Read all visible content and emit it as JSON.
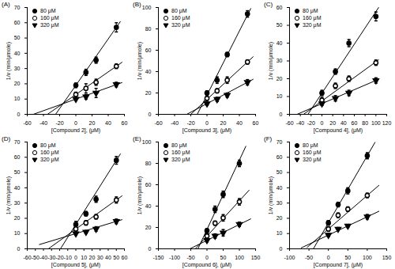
{
  "chart_data": [
    {
      "type": "scatter",
      "title": "(A)",
      "x_label": "[Compound 2], (μM)",
      "y_label": "1/v (min/μmole)",
      "x": [
        0,
        12.5,
        25,
        50
      ],
      "xlim": [
        -60,
        60
      ],
      "xticks": [
        -60,
        -40,
        -20,
        0,
        20,
        40,
        60
      ],
      "ylim": [
        0,
        70
      ],
      "yticks": [
        0,
        10,
        20,
        30,
        40,
        50,
        60,
        70
      ],
      "legend": "upper left",
      "series": [
        {
          "name": "80 μM",
          "color": "#000000",
          "marker": "circle",
          "values": [
            19,
            27.5,
            35.5,
            57
          ],
          "errors": [
            1.5,
            2,
            2,
            3
          ],
          "fit": {
            "x": [
              -25,
              55
            ],
            "y": [
              0,
              60.8
            ]
          }
        },
        {
          "name": "160 μM",
          "color": "#000000",
          "marker": "circle-open",
          "values": [
            13,
            17,
            21,
            31.5
          ],
          "errors": [
            1.5,
            3,
            2,
            1.5
          ],
          "fit": {
            "x": [
              -35,
              57
            ],
            "y": [
              0,
              34.1
            ]
          }
        },
        {
          "name": "320 μM",
          "color": "#000000",
          "marker": "triangle-down",
          "values": [
            10,
            11.5,
            14,
            19.5
          ],
          "errors": [
            1,
            1.5,
            3,
            1.5
          ],
          "fit": {
            "x": [
              -52,
              57
            ],
            "y": [
              0.1,
              20.8
            ]
          }
        }
      ]
    },
    {
      "type": "scatter",
      "title": "(B)",
      "x_label": "[Compound 3], (μM)",
      "y_label": "1/v (min/μmole)",
      "x": [
        0,
        12.5,
        25,
        50
      ],
      "xlim": [
        -60,
        60
      ],
      "xticks": [
        -60,
        -40,
        -20,
        0,
        20,
        40,
        60
      ],
      "ylim": [
        0,
        100
      ],
      "yticks": [
        0,
        20,
        40,
        60,
        80,
        100
      ],
      "legend": "upper left",
      "series": [
        {
          "name": "80 μM",
          "color": "#000000",
          "marker": "circle",
          "values": [
            20,
            32,
            56,
            94
          ],
          "errors": [
            2,
            3,
            2,
            3
          ],
          "fit": {
            "x": [
              -12,
              54
            ],
            "y": [
              0,
              99
            ]
          }
        },
        {
          "name": "160 μM",
          "color": "#000000",
          "marker": "circle-open",
          "values": [
            15,
            22,
            32,
            49
          ],
          "errors": [
            2,
            2,
            3,
            2
          ],
          "fit": {
            "x": [
              -20,
              57
            ],
            "y": [
              0,
              53.9
            ]
          }
        },
        {
          "name": "320 μM",
          "color": "#000000",
          "marker": "triangle-down",
          "values": [
            10,
            14,
            18,
            30
          ],
          "errors": [
            1.5,
            2,
            2,
            2.5
          ],
          "fit": {
            "x": [
              -25,
              57
            ],
            "y": [
              0,
              32.8
            ]
          }
        }
      ]
    },
    {
      "type": "scatter",
      "title": "(C)",
      "x_label": "[Compound 4], (μM)",
      "y_label": "1/v (min/μmole)",
      "x": [
        0,
        25,
        50,
        100
      ],
      "xlim": [
        -60,
        120
      ],
      "xticks": [
        -60,
        -40,
        -20,
        0,
        20,
        40,
        60,
        80,
        100,
        120
      ],
      "ylim": [
        0,
        60
      ],
      "yticks": [
        0,
        10,
        20,
        30,
        40,
        50,
        60
      ],
      "legend": "upper left",
      "series": [
        {
          "name": "80 μM",
          "color": "#000000",
          "marker": "circle",
          "values": [
            12,
            24,
            40,
            55
          ],
          "errors": [
            1.5,
            1.5,
            2,
            2.5
          ],
          "fit": {
            "x": [
              -26,
              105
            ],
            "y": [
              0,
              60
            ]
          }
        },
        {
          "name": "160 μM",
          "color": "#000000",
          "marker": "circle-open",
          "values": [
            8,
            16,
            20,
            29
          ],
          "errors": [
            1.5,
            1.5,
            1.5,
            1.5
          ],
          "fit": {
            "x": [
              -34,
              105
            ],
            "y": [
              0,
              30.6
            ]
          }
        },
        {
          "name": "320 μM",
          "color": "#000000",
          "marker": "triangle-down",
          "values": [
            6,
            9,
            12,
            19
          ],
          "errors": [
            1,
            1.5,
            1.5,
            1.5
          ],
          "fit": {
            "x": [
              -46,
              105
            ],
            "y": [
              0,
              19.7
            ]
          }
        }
      ]
    },
    {
      "type": "scatter",
      "title": "(D)",
      "x_label": "[Compound 5], (μM)",
      "y_label": "1/v (min/μmole)",
      "x": [
        0,
        12.5,
        25,
        50
      ],
      "xlim": [
        -60,
        60
      ],
      "xticks": [
        -60,
        -50,
        -40,
        -30,
        -20,
        -10,
        0,
        10,
        20,
        30,
        40,
        50,
        60
      ],
      "ylim": [
        0,
        70
      ],
      "yticks": [
        0,
        10,
        20,
        30,
        40,
        50,
        60,
        70
      ],
      "legend": "upper left",
      "series": [
        {
          "name": "80 μM",
          "color": "#000000",
          "marker": "circle",
          "values": [
            16,
            23,
            32.5,
            58
          ],
          "errors": [
            2,
            1.5,
            2,
            2.5
          ],
          "fit": {
            "x": [
              -19,
              55
            ],
            "y": [
              0,
              62.2
            ]
          }
        },
        {
          "name": "160 μM",
          "color": "#000000",
          "marker": "circle-open",
          "values": [
            13,
            17,
            21,
            32
          ],
          "errors": [
            1.5,
            1.5,
            1.5,
            2
          ],
          "fit": {
            "x": [
              -34,
              57
            ],
            "y": [
              0,
              34.7
            ]
          }
        },
        {
          "name": "320 μM",
          "color": "#000000",
          "marker": "triangle-down",
          "values": [
            10,
            11,
            13,
            18
          ],
          "errors": [
            1,
            1,
            1.5,
            1.5
          ],
          "fit": {
            "x": [
              -45,
              57
            ],
            "y": [
              2.8,
              19.1
            ]
          }
        }
      ]
    },
    {
      "type": "scatter",
      "title": "(E)",
      "x_label": "[Compound 6], (μM)",
      "y_label": "1/v (min/μmole)",
      "x": [
        0,
        25,
        50,
        100
      ],
      "xlim": [
        -150,
        150
      ],
      "xticks": [
        -150,
        -100,
        -50,
        0,
        50,
        100,
        150
      ],
      "ylim": [
        0,
        100
      ],
      "yticks": [
        0,
        20,
        40,
        60,
        80,
        100
      ],
      "legend": "upper left",
      "series": [
        {
          "name": "80 μM",
          "color": "#000000",
          "marker": "circle",
          "values": [
            17,
            37,
            51,
            80
          ],
          "errors": [
            2,
            3,
            3,
            3
          ],
          "fit": {
            "x": [
              -28,
              120
            ],
            "y": [
              0,
              96
            ]
          }
        },
        {
          "name": "160 μM",
          "color": "#000000",
          "marker": "circle-open",
          "values": [
            12,
            24,
            29,
            44
          ],
          "errors": [
            2,
            2,
            3,
            3
          ],
          "fit": {
            "x": [
              -36,
              130
            ],
            "y": [
              0,
              54.9
            ]
          }
        },
        {
          "name": "320 μM",
          "color": "#000000",
          "marker": "triangle-down",
          "values": [
            8,
            12,
            15,
            23
          ],
          "errors": [
            1.5,
            2,
            3,
            2
          ],
          "fit": {
            "x": [
              -53,
              135
            ],
            "y": [
              0,
              28
            ]
          }
        }
      ]
    },
    {
      "type": "scatter",
      "title": "(F)",
      "x_label": "[Compound 7], (μM)",
      "y_label": "1/v (min/μmole)",
      "x": [
        0,
        25,
        50,
        100
      ],
      "xlim": [
        -100,
        150
      ],
      "xticks": [
        -100,
        -50,
        0,
        50,
        100,
        150
      ],
      "ylim": [
        0,
        70
      ],
      "yticks": [
        0,
        10,
        20,
        30,
        40,
        50,
        60,
        70
      ],
      "legend": "upper left",
      "series": [
        {
          "name": "80 μM",
          "color": "#000000",
          "marker": "circle",
          "values": [
            17,
            29,
            38,
            61
          ],
          "errors": [
            1.5,
            1.5,
            2,
            2
          ],
          "fit": {
            "x": [
              -38,
              120
            ],
            "y": [
              0.3,
              69.8
            ]
          }
        },
        {
          "name": "160 μM",
          "color": "#000000",
          "marker": "circle-open",
          "values": [
            13,
            22,
            26,
            35
          ],
          "errors": [
            1.5,
            1.5,
            1.5,
            1.5
          ],
          "fit": {
            "x": [
              -55,
              130
            ],
            "y": [
              0.9,
              41.6
            ]
          }
        },
        {
          "name": "320 μM",
          "color": "#000000",
          "marker": "triangle-down",
          "values": [
            9,
            13,
            15,
            21
          ],
          "errors": [
            1,
            1,
            1,
            1.5
          ],
          "fit": {
            "x": [
              -70,
              130
            ],
            "y": [
              0.6,
              24.6
            ]
          }
        }
      ]
    }
  ]
}
